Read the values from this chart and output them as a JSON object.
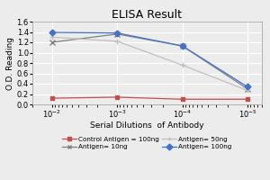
{
  "title": "ELISA Result",
  "xlabel": "Serial Dilutions  of Antibody",
  "ylabel": "O.D. Reading",
  "x_values": [
    0.01,
    0.001,
    0.0001,
    1e-05
  ],
  "series": [
    {
      "label": "Control Antigen = 100ng",
      "color": "#c0504d",
      "marker": "s",
      "markersize": 3.5,
      "y": [
        0.12,
        0.14,
        0.1,
        0.1
      ]
    },
    {
      "label": "Antigen= 10ng",
      "color": "#808080",
      "marker": "x",
      "markersize": 4.0,
      "y": [
        1.2,
        1.36,
        1.13,
        0.3
      ]
    },
    {
      "label": "Antigen= 50ng",
      "color": "#c0c0c0",
      "marker": "+",
      "markersize": 4.0,
      "y": [
        1.3,
        1.22,
        0.76,
        0.27
      ]
    },
    {
      "label": "Antigen= 100ng",
      "color": "#4472c4",
      "marker": "D",
      "markersize": 3.5,
      "y": [
        1.39,
        1.38,
        1.13,
        0.34
      ]
    }
  ],
  "ylim": [
    0,
    1.6
  ],
  "yticks": [
    0,
    0.2,
    0.4,
    0.6,
    0.8,
    1.0,
    1.2,
    1.4,
    1.6
  ],
  "xlim_left": 0.02,
  "xlim_right": 6e-06,
  "background_color": "#ececec",
  "grid_color": "#ffffff",
  "title_fontsize": 9,
  "axis_fontsize": 6.5,
  "tick_fontsize": 6,
  "legend_fontsize": 5.2
}
